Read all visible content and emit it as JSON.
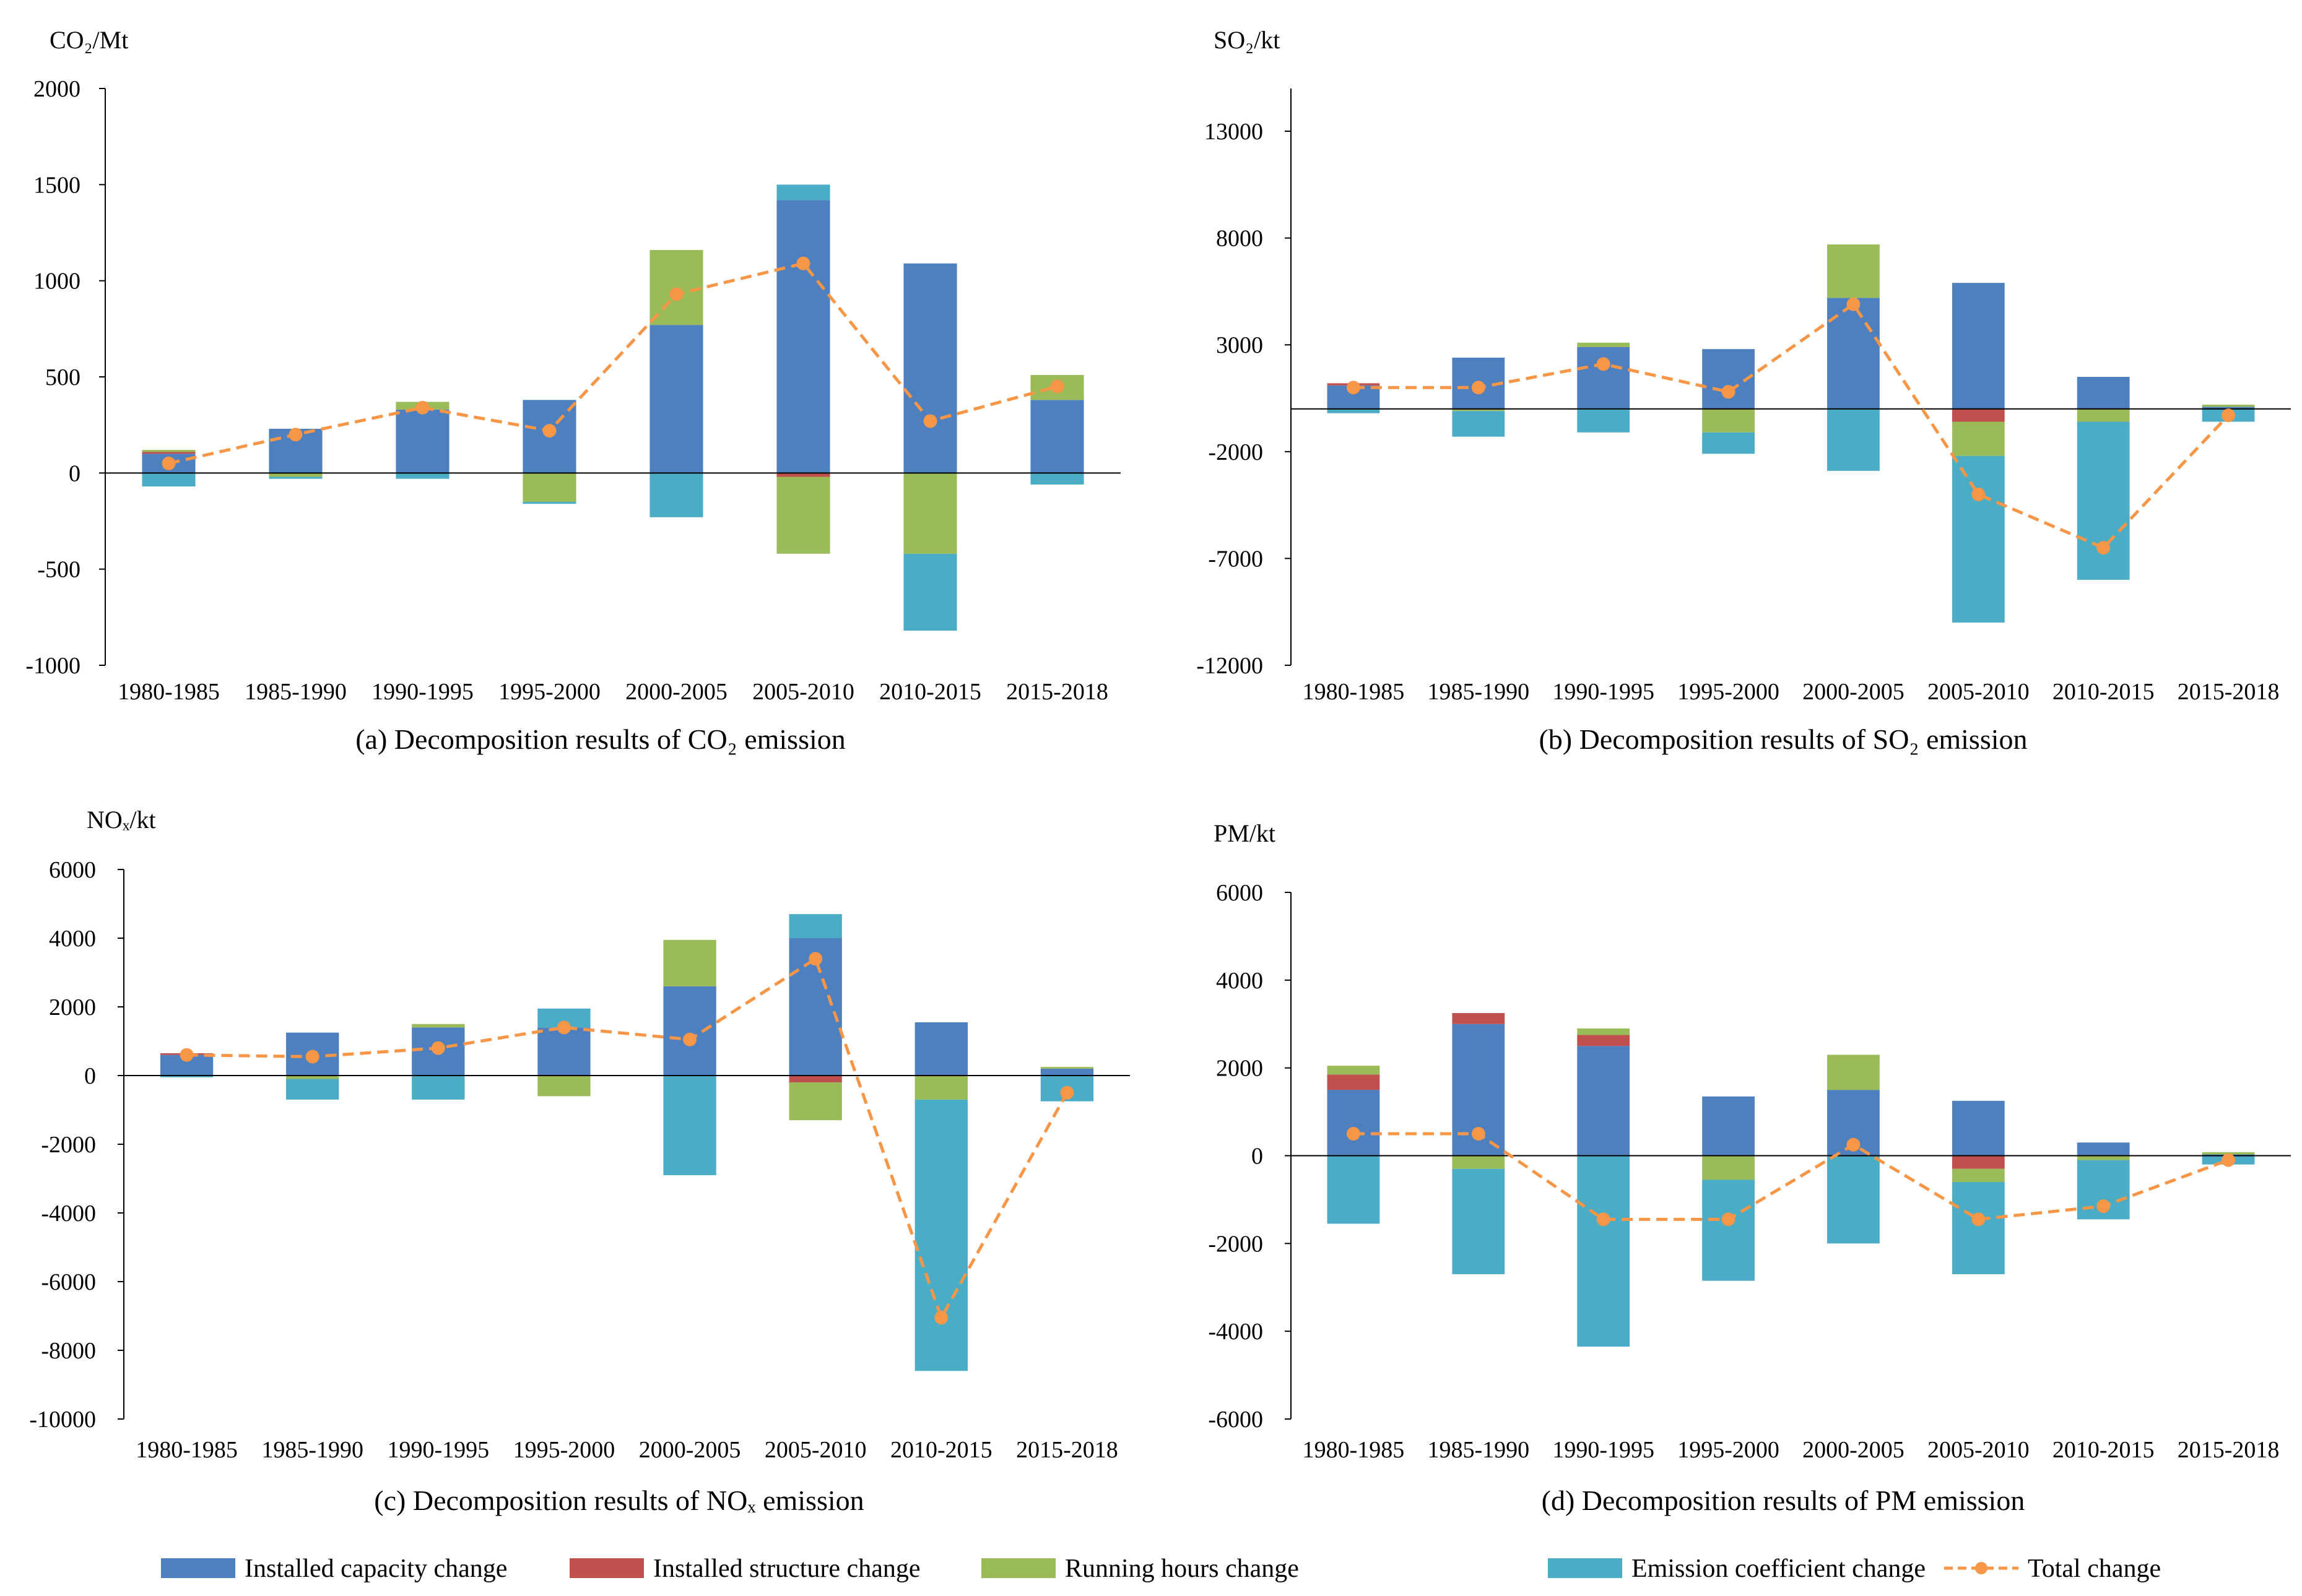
{
  "colors": {
    "installed_capacity": "#4e7fbe",
    "installed_structure": "#c0504d",
    "running_hours": "#9bbb59",
    "emission_coefficient": "#4bacc6",
    "total": "#f79646"
  },
  "legend": [
    {
      "key": "installed_capacity",
      "label": "Installed capacity change",
      "kind": "bar"
    },
    {
      "key": "installed_structure",
      "label": "Installed structure change",
      "kind": "bar"
    },
    {
      "key": "running_hours",
      "label": "Running hours change",
      "kind": "bar"
    },
    {
      "key": "emission_coefficient",
      "label": "Emission coefficient change",
      "kind": "bar"
    },
    {
      "key": "total",
      "label": "Total change",
      "kind": "line"
    }
  ],
  "chart_data": [
    {
      "type": "bar",
      "stacked": true,
      "title": "(a) Decomposition results of CO₂ emission",
      "ylabel": "CO₂/Mt",
      "xlabel": "",
      "ylim": [
        -1000,
        2000
      ],
      "yticks": [
        2000,
        1500,
        1000,
        500,
        0,
        -500,
        -1000
      ],
      "categories": [
        "1980-1985",
        "1985-1990",
        "1990-1995",
        "1995-2000",
        "2000-2005",
        "2005-2010",
        "2010-2015",
        "2015-2018"
      ],
      "series": [
        {
          "key": "installed_capacity",
          "name": "Installed capacity change",
          "values": [
            100,
            230,
            330,
            380,
            770,
            1420,
            1090,
            380
          ]
        },
        {
          "key": "installed_structure",
          "name": "Installed structure change",
          "values": [
            10,
            0,
            0,
            0,
            0,
            -20,
            0,
            0
          ]
        },
        {
          "key": "running_hours",
          "name": "Running hours change",
          "values": [
            10,
            -20,
            40,
            -150,
            390,
            -400,
            -420,
            130
          ]
        },
        {
          "key": "emission_coefficient",
          "name": "Emission coefficient change",
          "values": [
            -70,
            -10,
            -30,
            -10,
            -230,
            80,
            -400,
            -60
          ]
        }
      ],
      "total": {
        "key": "total",
        "name": "Total change",
        "values": [
          50,
          200,
          340,
          220,
          930,
          1090,
          270,
          450
        ]
      }
    },
    {
      "type": "bar",
      "stacked": true,
      "title": "(b) Decomposition results of SO₂ emission",
      "ylabel": "SO₂/kt",
      "xlabel": "",
      "ylim": [
        -12000,
        15000
      ],
      "yticks": [
        13000,
        8000,
        3000,
        -2000,
        -7000,
        -12000
      ],
      "categories": [
        "1980-1985",
        "1985-1990",
        "1990-1995",
        "1995-2000",
        "2000-2005",
        "2005-2010",
        "2010-2015",
        "2015-2018"
      ],
      "series": [
        {
          "key": "installed_capacity",
          "name": "Installed capacity change",
          "values": [
            1100,
            2400,
            2900,
            2800,
            5200,
            5900,
            1500,
            100
          ]
        },
        {
          "key": "installed_structure",
          "name": "Installed structure change",
          "values": [
            100,
            0,
            0,
            0,
            0,
            -600,
            0,
            0
          ]
        },
        {
          "key": "running_hours",
          "name": "Running hours change",
          "values": [
            0,
            -100,
            200,
            -1100,
            2500,
            -1600,
            -600,
            100
          ]
        },
        {
          "key": "emission_coefficient",
          "name": "Emission coefficient change",
          "values": [
            -200,
            -1200,
            -1100,
            -1000,
            -2900,
            -7800,
            -7400,
            -600
          ]
        }
      ],
      "total": {
        "key": "total",
        "name": "Total change",
        "values": [
          1000,
          1000,
          2100,
          800,
          4900,
          -4000,
          -6500,
          -300
        ]
      }
    },
    {
      "type": "bar",
      "stacked": true,
      "title": "(c) Decomposition results of NOₓ emission",
      "ylabel": "NOₓ/kt",
      "xlabel": "",
      "ylim": [
        -10000,
        6000
      ],
      "yticks": [
        6000,
        4000,
        2000,
        0,
        -2000,
        -4000,
        -6000,
        -8000,
        -10000
      ],
      "categories": [
        "1980-1985",
        "1985-1990",
        "1990-1995",
        "1995-2000",
        "2000-2005",
        "2005-2010",
        "2010-2015",
        "2015-2018"
      ],
      "series": [
        {
          "key": "installed_capacity",
          "name": "Installed capacity change",
          "values": [
            600,
            1250,
            1400,
            1400,
            2600,
            4000,
            1550,
            200
          ]
        },
        {
          "key": "installed_structure",
          "name": "Installed structure change",
          "values": [
            50,
            0,
            0,
            0,
            0,
            -200,
            0,
            0
          ]
        },
        {
          "key": "running_hours",
          "name": "Running hours change",
          "values": [
            0,
            -100,
            100,
            -600,
            1350,
            -1100,
            -700,
            50
          ]
        },
        {
          "key": "emission_coefficient",
          "name": "Emission coefficient change",
          "values": [
            -50,
            -600,
            -700,
            550,
            -2900,
            700,
            -7900,
            -750
          ]
        }
      ],
      "total": {
        "key": "total",
        "name": "Total change",
        "values": [
          600,
          550,
          800,
          1400,
          1050,
          3400,
          -7050,
          -500
        ]
      }
    },
    {
      "type": "bar",
      "stacked": true,
      "title": "(d) Decomposition results of PM emission",
      "ylabel": "PM/kt",
      "xlabel": "",
      "ylim": [
        -6000,
        6000
      ],
      "yticks": [
        6000,
        4000,
        2000,
        0,
        -2000,
        -4000,
        -6000
      ],
      "categories": [
        "1980-1985",
        "1985-1990",
        "1990-1995",
        "1995-2000",
        "2000-2005",
        "2005-2010",
        "2010-2015",
        "2015-2018"
      ],
      "series": [
        {
          "key": "installed_capacity",
          "name": "Installed capacity change",
          "values": [
            1500,
            3000,
            2500,
            1350,
            1500,
            1250,
            300,
            30
          ]
        },
        {
          "key": "installed_structure",
          "name": "Installed structure change",
          "values": [
            350,
            250,
            250,
            0,
            0,
            -300,
            0,
            0
          ]
        },
        {
          "key": "running_hours",
          "name": "Running hours change",
          "values": [
            200,
            -300,
            150,
            -550,
            800,
            -300,
            -100,
            50
          ]
        },
        {
          "key": "emission_coefficient",
          "name": "Emission coefficient change",
          "values": [
            -1550,
            -2400,
            -4350,
            -2300,
            -2000,
            -2100,
            -1350,
            -200
          ]
        }
      ],
      "total": {
        "key": "total",
        "name": "Total change",
        "values": [
          500,
          500,
          -1450,
          -1450,
          250,
          -1450,
          -1150,
          -100
        ]
      }
    }
  ]
}
